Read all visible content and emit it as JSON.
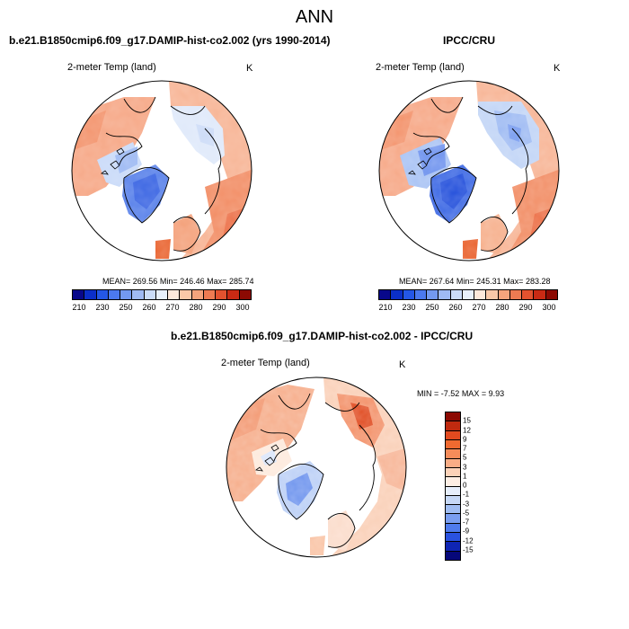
{
  "main_title": "ANN",
  "panels": [
    {
      "title": "b.e21.B1850cmip6.f09_g17.DAMIP-hist-co2.002 (yrs 1990-2014)",
      "variable": "2-meter Temp (land)",
      "units": "K",
      "mean_label": "MEAN=",
      "mean": "269.56",
      "min_label": "Min=",
      "min": "246.46",
      "max_label": "Max=",
      "max": "285.74"
    },
    {
      "title": "IPCC/CRU",
      "variable": "2-meter Temp (land)",
      "units": "K",
      "mean_label": "MEAN=",
      "mean": "267.64",
      "min_label": "Min=",
      "min": "245.31",
      "max_label": "Max=",
      "max": "283.28"
    },
    {
      "title": "b.e21.B1850cmip6.f09_g17.DAMIP-hist-co2.002 - IPCC/CRU",
      "variable": "2-meter Temp (land)",
      "units": "K",
      "min_label": "MIN =",
      "min": "-7.52",
      "max_label": "MAX =",
      "max": "9.93"
    }
  ],
  "abs_colorbar": {
    "colors": [
      "#08088a",
      "#0b2fc9",
      "#2457e6",
      "#4b79ee",
      "#7399f0",
      "#9fbaf4",
      "#cbdcf8",
      "#e8f0fb",
      "#fde8da",
      "#f9c8a8",
      "#f4a47c",
      "#ee7b52",
      "#e2522f",
      "#c92a14",
      "#8c0a03"
    ],
    "ticks": [
      "210",
      "230",
      "250",
      "260",
      "270",
      "280",
      "290",
      "300"
    ]
  },
  "diff_colorbar": {
    "colors": [
      "#8c0a03",
      "#c02a0f",
      "#e24a1f",
      "#f06a30",
      "#f58c5a",
      "#f9ad86",
      "#fcd2b8",
      "#fdeee4",
      "#e6eefb",
      "#c6d8f6",
      "#a0bdf2",
      "#7a9ef0",
      "#4f7bed",
      "#2a52e0",
      "#0f25b4",
      "#06087a"
    ],
    "ticks": [
      "15",
      "12",
      "9",
      "7",
      "5",
      "3",
      "1",
      "0",
      "-1",
      "-3",
      "-5",
      "-7",
      "-9",
      "-12",
      "-15"
    ]
  }
}
